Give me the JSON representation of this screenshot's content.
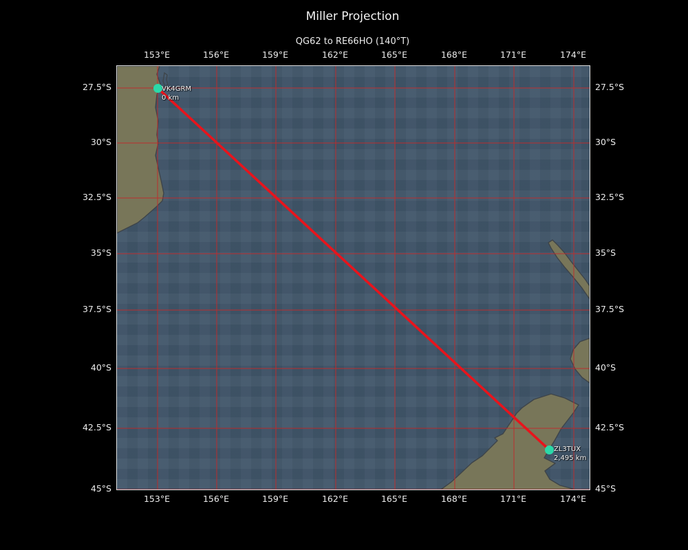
{
  "title": "Miller Projection",
  "subtitle": "QG62 to RE66HO (140°T)",
  "axes": {
    "lon_labels": [
      "153°E",
      "156°E",
      "159°E",
      "162°E",
      "165°E",
      "168°E",
      "171°E",
      "174°E"
    ],
    "lat_labels": [
      "27.5°S",
      "30°S",
      "32.5°S",
      "35°S",
      "37.5°S",
      "40°S",
      "42.5°S",
      "45°S"
    ]
  },
  "path": {
    "start": {
      "callsign": "VK4GRM",
      "distance_label": "0 km"
    },
    "end": {
      "callsign": "ZL3TUX",
      "distance_label": "2,495 km"
    },
    "bearing_label": "140°T",
    "grid_start": "QG62",
    "grid_end": "RE66HO"
  },
  "colors": {
    "background": "#000000",
    "ocean": "#41566a",
    "land": "#787659",
    "coastline": "#3e4449",
    "grid": "#c12b2b",
    "track": "#e8141c",
    "marker": "#2bd9a9",
    "frame": "#dedede",
    "text": "#ececec"
  }
}
